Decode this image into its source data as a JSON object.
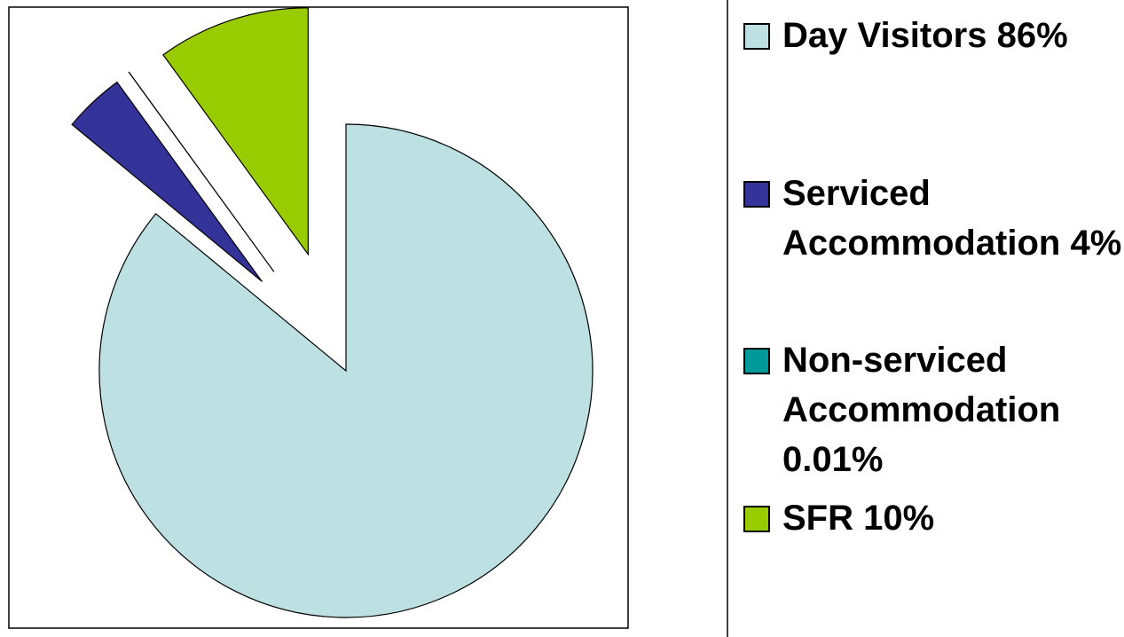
{
  "chart_data": {
    "type": "pie",
    "categories": [
      "Day Visitors",
      "Serviced Accommodation",
      "Non-serviced Accommodation",
      "SFR"
    ],
    "values": [
      86,
      4,
      0.01,
      10
    ],
    "value_labels": [
      "86%",
      "4%",
      "0.01%",
      "10%"
    ],
    "colors": [
      "#BDE0E3",
      "#333399",
      "#009999",
      "#99CC00"
    ],
    "exploded": [
      false,
      true,
      true,
      true
    ]
  }
}
